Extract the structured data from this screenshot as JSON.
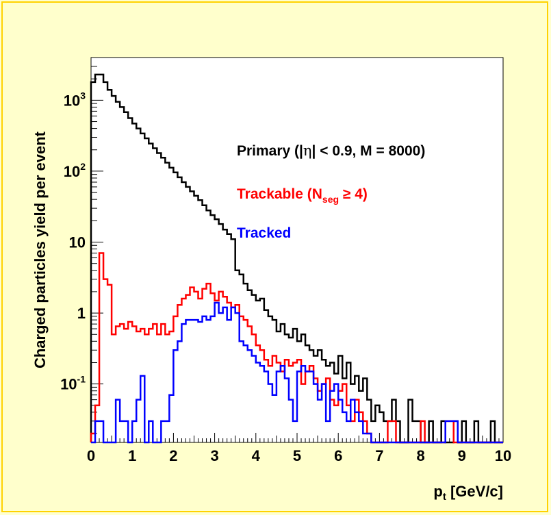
{
  "chart_data": {
    "type": "step-histogram",
    "title": "",
    "xlabel": "p",
    "xlabel_sub": "t",
    "xlabel_unit": " [GeV/c]",
    "ylabel": "Charged particles yield per event",
    "xlim": [
      0,
      10
    ],
    "ylim": [
      0.015,
      4000
    ],
    "y_scale": "log",
    "grid": false,
    "x_ticks": [
      "0",
      "1",
      "2",
      "3",
      "4",
      "5",
      "6",
      "7",
      "8",
      "9",
      "10"
    ],
    "y_ticks": [
      {
        "value": 0.1,
        "base": "10",
        "exp": "-1"
      },
      {
        "value": 1,
        "base": "1",
        "exp": ""
      },
      {
        "value": 10,
        "base": "10",
        "exp": ""
      },
      {
        "value": 100,
        "base": "10",
        "exp": "2"
      },
      {
        "value": 1000,
        "base": "10",
        "exp": "3"
      }
    ],
    "legend": {
      "placement": "top-right",
      "primary": {
        "pre": "Primary (|",
        "sym": "η",
        "post": "| < 0.9, M = 8000)"
      },
      "trackable": {
        "pre": "Trackable (N",
        "sub": "seg",
        "post": " ≥ 4)"
      },
      "tracked": {
        "text": "Tracked"
      }
    },
    "series": [
      {
        "name": "Primary",
        "color": "#000000",
        "bins": [
          [
            0.0,
            1800
          ],
          [
            0.1,
            2300
          ],
          [
            0.2,
            2300
          ],
          [
            0.3,
            1800
          ],
          [
            0.4,
            1400
          ],
          [
            0.5,
            1150
          ],
          [
            0.6,
            950
          ],
          [
            0.7,
            800
          ],
          [
            0.8,
            680
          ],
          [
            0.9,
            560
          ],
          [
            1.0,
            470
          ],
          [
            1.1,
            400
          ],
          [
            1.2,
            340
          ],
          [
            1.3,
            290
          ],
          [
            1.4,
            245
          ],
          [
            1.5,
            210
          ],
          [
            1.6,
            180
          ],
          [
            1.7,
            155
          ],
          [
            1.8,
            132
          ],
          [
            1.9,
            112
          ],
          [
            2.0,
            96
          ],
          [
            2.1,
            82
          ],
          [
            2.2,
            70
          ],
          [
            2.3,
            60
          ],
          [
            2.4,
            52
          ],
          [
            2.5,
            45
          ],
          [
            2.6,
            39
          ],
          [
            2.7,
            33
          ],
          [
            2.8,
            28
          ],
          [
            2.9,
            24
          ],
          [
            3.0,
            21
          ],
          [
            3.1,
            18
          ],
          [
            3.2,
            15
          ],
          [
            3.3,
            13
          ],
          [
            3.4,
            11
          ],
          [
            3.5,
            4.0
          ],
          [
            3.6,
            3.5
          ],
          [
            3.7,
            2.6
          ],
          [
            3.8,
            2.1
          ],
          [
            3.9,
            1.8
          ],
          [
            4.0,
            1.5
          ],
          [
            4.1,
            1.6
          ],
          [
            4.2,
            1.1
          ],
          [
            4.3,
            0.9
          ],
          [
            4.4,
            0.8
          ],
          [
            4.5,
            0.55
          ],
          [
            4.6,
            0.7
          ],
          [
            4.7,
            0.5
          ],
          [
            4.8,
            0.45
          ],
          [
            4.9,
            0.6
          ],
          [
            5.0,
            0.4
          ],
          [
            5.1,
            0.5
          ],
          [
            5.2,
            0.35
          ],
          [
            5.3,
            0.3
          ],
          [
            5.4,
            0.25
          ],
          [
            5.5,
            0.3
          ],
          [
            5.6,
            0.22
          ],
          [
            5.7,
            0.18
          ],
          [
            5.8,
            0.2
          ],
          [
            5.9,
            0.14
          ],
          [
            6.0,
            0.25
          ],
          [
            6.1,
            0.12
          ],
          [
            6.2,
            0.2
          ],
          [
            6.3,
            0.1
          ],
          [
            6.4,
            0.13
          ],
          [
            6.5,
            0.08
          ],
          [
            6.6,
            0.12
          ],
          [
            6.7,
            0.06
          ],
          [
            6.8,
            0.03
          ],
          [
            6.9,
            0.05
          ],
          [
            7.0,
            0.04
          ],
          [
            7.1,
            0.03
          ],
          [
            7.2,
            0.03
          ],
          [
            7.3,
            0.06
          ],
          [
            7.4,
            0.03
          ],
          [
            7.5,
            0.0
          ],
          [
            7.6,
            0.0
          ],
          [
            7.7,
            0.06
          ],
          [
            7.8,
            0.03
          ],
          [
            7.9,
            0.03
          ],
          [
            8.0,
            0.0
          ],
          [
            8.1,
            0.0
          ],
          [
            8.2,
            0.03
          ],
          [
            8.3,
            0.0
          ],
          [
            8.4,
            0.0
          ],
          [
            8.5,
            0.03
          ],
          [
            8.6,
            0.0
          ],
          [
            8.7,
            0.0
          ],
          [
            8.8,
            0.03
          ],
          [
            8.9,
            0.0
          ],
          [
            9.0,
            0.03
          ],
          [
            9.1,
            0.0
          ],
          [
            9.2,
            0.0
          ],
          [
            9.3,
            0.03
          ],
          [
            9.4,
            0.0
          ],
          [
            9.5,
            0.0
          ],
          [
            9.6,
            0.0
          ],
          [
            9.7,
            0.03
          ],
          [
            9.8,
            0.0
          ],
          [
            9.9,
            0.0
          ]
        ]
      },
      {
        "name": "Trackable",
        "color": "#ff0000",
        "bins": [
          [
            0.0,
            0.02
          ],
          [
            0.1,
            0.05
          ],
          [
            0.2,
            7.0
          ],
          [
            0.3,
            3.0
          ],
          [
            0.4,
            2.5
          ],
          [
            0.5,
            0.5
          ],
          [
            0.6,
            0.65
          ],
          [
            0.7,
            0.7
          ],
          [
            0.8,
            0.6
          ],
          [
            0.9,
            0.75
          ],
          [
            1.0,
            0.65
          ],
          [
            1.1,
            0.55
          ],
          [
            1.2,
            0.6
          ],
          [
            1.3,
            0.5
          ],
          [
            1.4,
            0.6
          ],
          [
            1.5,
            0.7
          ],
          [
            1.6,
            0.5
          ],
          [
            1.7,
            0.7
          ],
          [
            1.8,
            0.5
          ],
          [
            1.9,
            0.55
          ],
          [
            2.0,
            0.9
          ],
          [
            2.1,
            1.3
          ],
          [
            2.2,
            1.6
          ],
          [
            2.3,
            1.8
          ],
          [
            2.4,
            2.3
          ],
          [
            2.5,
            2.0
          ],
          [
            2.6,
            1.6
          ],
          [
            2.7,
            2.2
          ],
          [
            2.8,
            2.6
          ],
          [
            2.9,
            1.9
          ],
          [
            3.0,
            1.5
          ],
          [
            3.1,
            2.0
          ],
          [
            3.2,
            1.7
          ],
          [
            3.3,
            1.4
          ],
          [
            3.4,
            1.2
          ],
          [
            3.5,
            1.3
          ],
          [
            3.6,
            0.9
          ],
          [
            3.7,
            0.8
          ],
          [
            3.8,
            0.65
          ],
          [
            3.9,
            0.5
          ],
          [
            4.0,
            0.35
          ],
          [
            4.1,
            0.3
          ],
          [
            4.2,
            0.22
          ],
          [
            4.3,
            0.18
          ],
          [
            4.4,
            0.25
          ],
          [
            4.5,
            0.2
          ],
          [
            4.6,
            0.15
          ],
          [
            4.7,
            0.22
          ],
          [
            4.8,
            0.18
          ],
          [
            4.9,
            0.2
          ],
          [
            5.0,
            0.22
          ],
          [
            5.1,
            0.1
          ],
          [
            5.2,
            0.15
          ],
          [
            5.3,
            0.18
          ],
          [
            5.4,
            0.12
          ],
          [
            5.5,
            0.08
          ],
          [
            5.6,
            0.1
          ],
          [
            5.7,
            0.12
          ],
          [
            5.8,
            0.06
          ],
          [
            5.9,
            0.05
          ],
          [
            6.0,
            0.08
          ],
          [
            6.1,
            0.1
          ],
          [
            6.2,
            0.05
          ],
          [
            6.3,
            0.03
          ],
          [
            6.4,
            0.06
          ],
          [
            6.5,
            0.04
          ],
          [
            6.6,
            0.03
          ],
          [
            6.7,
            0.02
          ],
          [
            6.8,
            0.0
          ],
          [
            6.9,
            0.0
          ],
          [
            7.0,
            0.0
          ],
          [
            7.1,
            0.0
          ],
          [
            7.2,
            0.03
          ],
          [
            7.3,
            0.03
          ],
          [
            7.4,
            0.0
          ],
          [
            7.5,
            0.0
          ],
          [
            7.6,
            0.0
          ],
          [
            7.7,
            0.0
          ],
          [
            7.8,
            0.0
          ],
          [
            7.9,
            0.0
          ],
          [
            8.0,
            0.03
          ],
          [
            8.1,
            0.0
          ],
          [
            8.2,
            0.0
          ],
          [
            8.3,
            0.0
          ],
          [
            8.4,
            0.0
          ],
          [
            8.5,
            0.0
          ],
          [
            8.6,
            0.03
          ],
          [
            8.7,
            0.03
          ],
          [
            8.8,
            0.0
          ],
          [
            8.9,
            0.0
          ],
          [
            9.0,
            0.0
          ],
          [
            9.1,
            0.0
          ],
          [
            9.2,
            0.0
          ],
          [
            9.3,
            0.0
          ],
          [
            9.4,
            0.0
          ],
          [
            9.5,
            0.0
          ],
          [
            9.6,
            0.0
          ],
          [
            9.7,
            0.0
          ],
          [
            9.8,
            0.0
          ],
          [
            9.9,
            0.0
          ]
        ]
      },
      {
        "name": "Tracked",
        "color": "#0000ff",
        "bins": [
          [
            0.0,
            0.0
          ],
          [
            0.1,
            0.03
          ],
          [
            0.2,
            0.03
          ],
          [
            0.3,
            0.0
          ],
          [
            0.4,
            0.0
          ],
          [
            0.5,
            0.0
          ],
          [
            0.6,
            0.06
          ],
          [
            0.7,
            0.03
          ],
          [
            0.8,
            0.03
          ],
          [
            0.9,
            0.0
          ],
          [
            1.0,
            0.03
          ],
          [
            1.1,
            0.06
          ],
          [
            1.2,
            0.13
          ],
          [
            1.3,
            0.0
          ],
          [
            1.4,
            0.03
          ],
          [
            1.5,
            0.0
          ],
          [
            1.6,
            0.0
          ],
          [
            1.7,
            0.03
          ],
          [
            1.8,
            0.03
          ],
          [
            1.9,
            0.07
          ],
          [
            2.0,
            0.3
          ],
          [
            2.1,
            0.4
          ],
          [
            2.2,
            0.7
          ],
          [
            2.3,
            0.8
          ],
          [
            2.4,
            0.8
          ],
          [
            2.5,
            0.8
          ],
          [
            2.6,
            0.75
          ],
          [
            2.7,
            0.9
          ],
          [
            2.8,
            0.8
          ],
          [
            2.9,
            0.9
          ],
          [
            3.0,
            1.4
          ],
          [
            3.1,
            1.0
          ],
          [
            3.2,
            1.2
          ],
          [
            3.3,
            0.8
          ],
          [
            3.4,
            1.2
          ],
          [
            3.5,
            1.0
          ],
          [
            3.6,
            0.4
          ],
          [
            3.7,
            0.35
          ],
          [
            3.8,
            0.3
          ],
          [
            3.9,
            0.25
          ],
          [
            4.0,
            0.2
          ],
          [
            4.1,
            0.18
          ],
          [
            4.2,
            0.15
          ],
          [
            4.3,
            0.1
          ],
          [
            4.4,
            0.07
          ],
          [
            4.5,
            0.15
          ],
          [
            4.6,
            0.18
          ],
          [
            4.7,
            0.12
          ],
          [
            4.8,
            0.06
          ],
          [
            4.9,
            0.03
          ],
          [
            5.0,
            0.15
          ],
          [
            5.1,
            0.18
          ],
          [
            5.2,
            0.15
          ],
          [
            5.3,
            0.15
          ],
          [
            5.4,
            0.1
          ],
          [
            5.5,
            0.06
          ],
          [
            5.6,
            0.1
          ],
          [
            5.7,
            0.03
          ],
          [
            5.8,
            0.08
          ],
          [
            5.9,
            0.1
          ],
          [
            6.0,
            0.06
          ],
          [
            6.1,
            0.04
          ],
          [
            6.2,
            0.03
          ],
          [
            6.3,
            0.06
          ],
          [
            6.4,
            0.04
          ],
          [
            6.5,
            0.03
          ],
          [
            6.6,
            0.02
          ],
          [
            6.7,
            0.02
          ],
          [
            6.8,
            0.0
          ],
          [
            6.9,
            0.0
          ],
          [
            7.0,
            0.0
          ],
          [
            7.1,
            0.0
          ],
          [
            7.2,
            0.0
          ],
          [
            7.3,
            0.0
          ],
          [
            7.4,
            0.0
          ],
          [
            7.5,
            0.0
          ],
          [
            7.6,
            0.0
          ],
          [
            7.7,
            0.0
          ],
          [
            7.8,
            0.0
          ],
          [
            7.9,
            0.0
          ],
          [
            8.0,
            0.0
          ],
          [
            8.1,
            0.0
          ],
          [
            8.2,
            0.0
          ],
          [
            8.3,
            0.0
          ],
          [
            8.4,
            0.0
          ],
          [
            8.5,
            0.0
          ],
          [
            8.6,
            0.03
          ],
          [
            8.7,
            0.03
          ],
          [
            8.8,
            0.03
          ],
          [
            8.9,
            0.0
          ],
          [
            9.0,
            0.0
          ],
          [
            9.1,
            0.0
          ],
          [
            9.2,
            0.0
          ],
          [
            9.3,
            0.0
          ],
          [
            9.4,
            0.0
          ],
          [
            9.5,
            0.0
          ],
          [
            9.6,
            0.0
          ],
          [
            9.7,
            0.0
          ],
          [
            9.8,
            0.0
          ],
          [
            9.9,
            0.0
          ]
        ]
      }
    ]
  }
}
